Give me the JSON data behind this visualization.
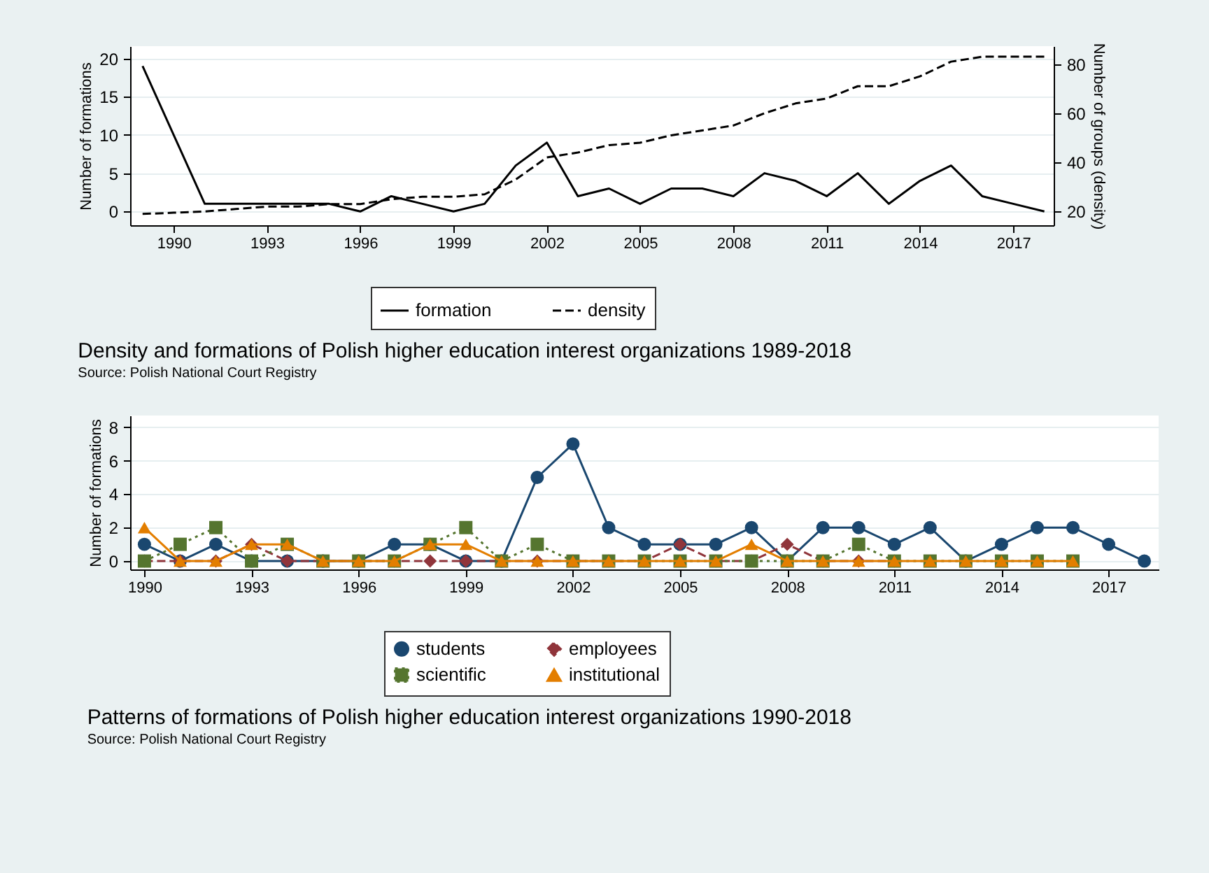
{
  "chart_data": [
    {
      "type": "line",
      "title": "Density and formations of Polish higher education interest organizations 1989-2018",
      "ylabel": "Number of formations",
      "y2label": "Number of groups (density)",
      "annotations": [
        "Source: Polish National Court Registry"
      ],
      "x": [
        1989,
        1990,
        1991,
        1992,
        1993,
        1994,
        1995,
        1996,
        1997,
        1998,
        1999,
        2000,
        2001,
        2002,
        2003,
        2004,
        2005,
        2006,
        2007,
        2008,
        2009,
        2010,
        2011,
        2012,
        2013,
        2014,
        2015,
        2016,
        2017,
        2018
      ],
      "series": [
        {
          "name": "formation",
          "color": "#000000",
          "line_style": "solid",
          "x": [
            1989,
            1991,
            1992,
            1993,
            1994,
            1995,
            1996,
            1997,
            1998,
            1999,
            2000,
            2001,
            2002,
            2003,
            2004,
            2005,
            2006,
            2007,
            2008,
            2009,
            2010,
            2011,
            2012,
            2013,
            2014,
            2015,
            2016,
            2017,
            2018
          ],
          "values": [
            19,
            1,
            1,
            1,
            1,
            1,
            0,
            2,
            1,
            0,
            1,
            6,
            9,
            2,
            3,
            1,
            3,
            3,
            2,
            5,
            4,
            2,
            5,
            1,
            4,
            6,
            2,
            1,
            0
          ]
        },
        {
          "name": "density",
          "color": "#000000",
          "line_style": "dashed",
          "axis": "y2",
          "values": [
            19,
            19.5,
            20,
            21,
            22,
            22,
            23,
            23,
            25,
            26,
            26,
            27,
            33,
            42,
            44,
            47,
            48,
            51,
            53,
            55,
            60,
            64,
            66,
            71,
            71,
            75,
            81,
            83,
            83,
            83
          ]
        }
      ],
      "xlim": [
        1988.6,
        2018.3
      ],
      "xticks": [
        1990,
        1993,
        1996,
        1999,
        2002,
        2005,
        2008,
        2011,
        2014,
        2017
      ],
      "ylim": [
        -1.8,
        21.6
      ],
      "yticks": [
        0,
        5,
        10,
        15,
        20
      ],
      "y2lim": [
        14.4,
        87.3
      ],
      "y2ticks": [
        20,
        40,
        60,
        80
      ],
      "grid": "y",
      "legend": "bottom",
      "marker": "none"
    },
    {
      "type": "line",
      "title": "Patterns of formations of Polish higher education interest organizations 1990-2018",
      "ylabel": "Number of formations",
      "annotations": [
        "Source: Polish National Court Registry"
      ],
      "x": [
        1990,
        1991,
        1992,
        1993,
        1994,
        1995,
        1996,
        1997,
        1998,
        1999,
        2000,
        2001,
        2002,
        2003,
        2004,
        2005,
        2006,
        2007,
        2008,
        2009,
        2010,
        2011,
        2012,
        2013,
        2014,
        2015,
        2016,
        2017,
        2018
      ],
      "series": [
        {
          "name": "students",
          "color": "#1a476f",
          "marker": "circle",
          "line_style": "solid",
          "values": [
            1,
            0,
            1,
            0,
            0,
            0,
            0,
            1,
            1,
            0,
            0,
            5,
            7,
            2,
            1,
            1,
            1,
            2,
            0,
            2,
            2,
            1,
            2,
            0,
            1,
            2,
            2,
            1,
            0
          ]
        },
        {
          "name": "employees",
          "color": "#90353b",
          "marker": "diamond",
          "line_style": "dashed",
          "values": [
            0,
            0,
            0,
            1,
            0,
            0,
            0,
            0,
            0,
            0,
            0,
            0,
            0,
            0,
            0,
            1,
            0,
            0,
            1,
            0,
            0,
            0,
            null,
            null,
            null,
            null,
            null,
            null,
            null
          ]
        },
        {
          "name": "scientific",
          "color": "#55752f",
          "marker": "square",
          "line_style": "dotted",
          "values": [
            0,
            1,
            2,
            0,
            1,
            0,
            0,
            0,
            1,
            2,
            0,
            1,
            0,
            0,
            0,
            0,
            0,
            0,
            0,
            0,
            1,
            0,
            0,
            0,
            0,
            0,
            0,
            null,
            null
          ]
        },
        {
          "name": "institutional",
          "color": "#e37e00",
          "marker": "triangle",
          "line_style": "solid",
          "values": [
            2,
            0,
            0,
            1,
            1,
            0,
            0,
            0,
            1,
            1,
            0,
            0,
            0,
            0,
            0,
            0,
            0,
            1,
            0,
            0,
            0,
            0,
            0,
            0,
            0,
            0,
            0,
            null,
            null
          ]
        }
      ],
      "xlim": [
        1989.6,
        2018.4
      ],
      "xticks": [
        1990,
        1993,
        1996,
        1999,
        2002,
        2005,
        2008,
        2011,
        2014,
        2017
      ],
      "ylim": [
        -0.5,
        8.7
      ],
      "yticks": [
        0,
        2,
        4,
        6,
        8
      ],
      "grid": "y",
      "legend": "bottom"
    }
  ]
}
